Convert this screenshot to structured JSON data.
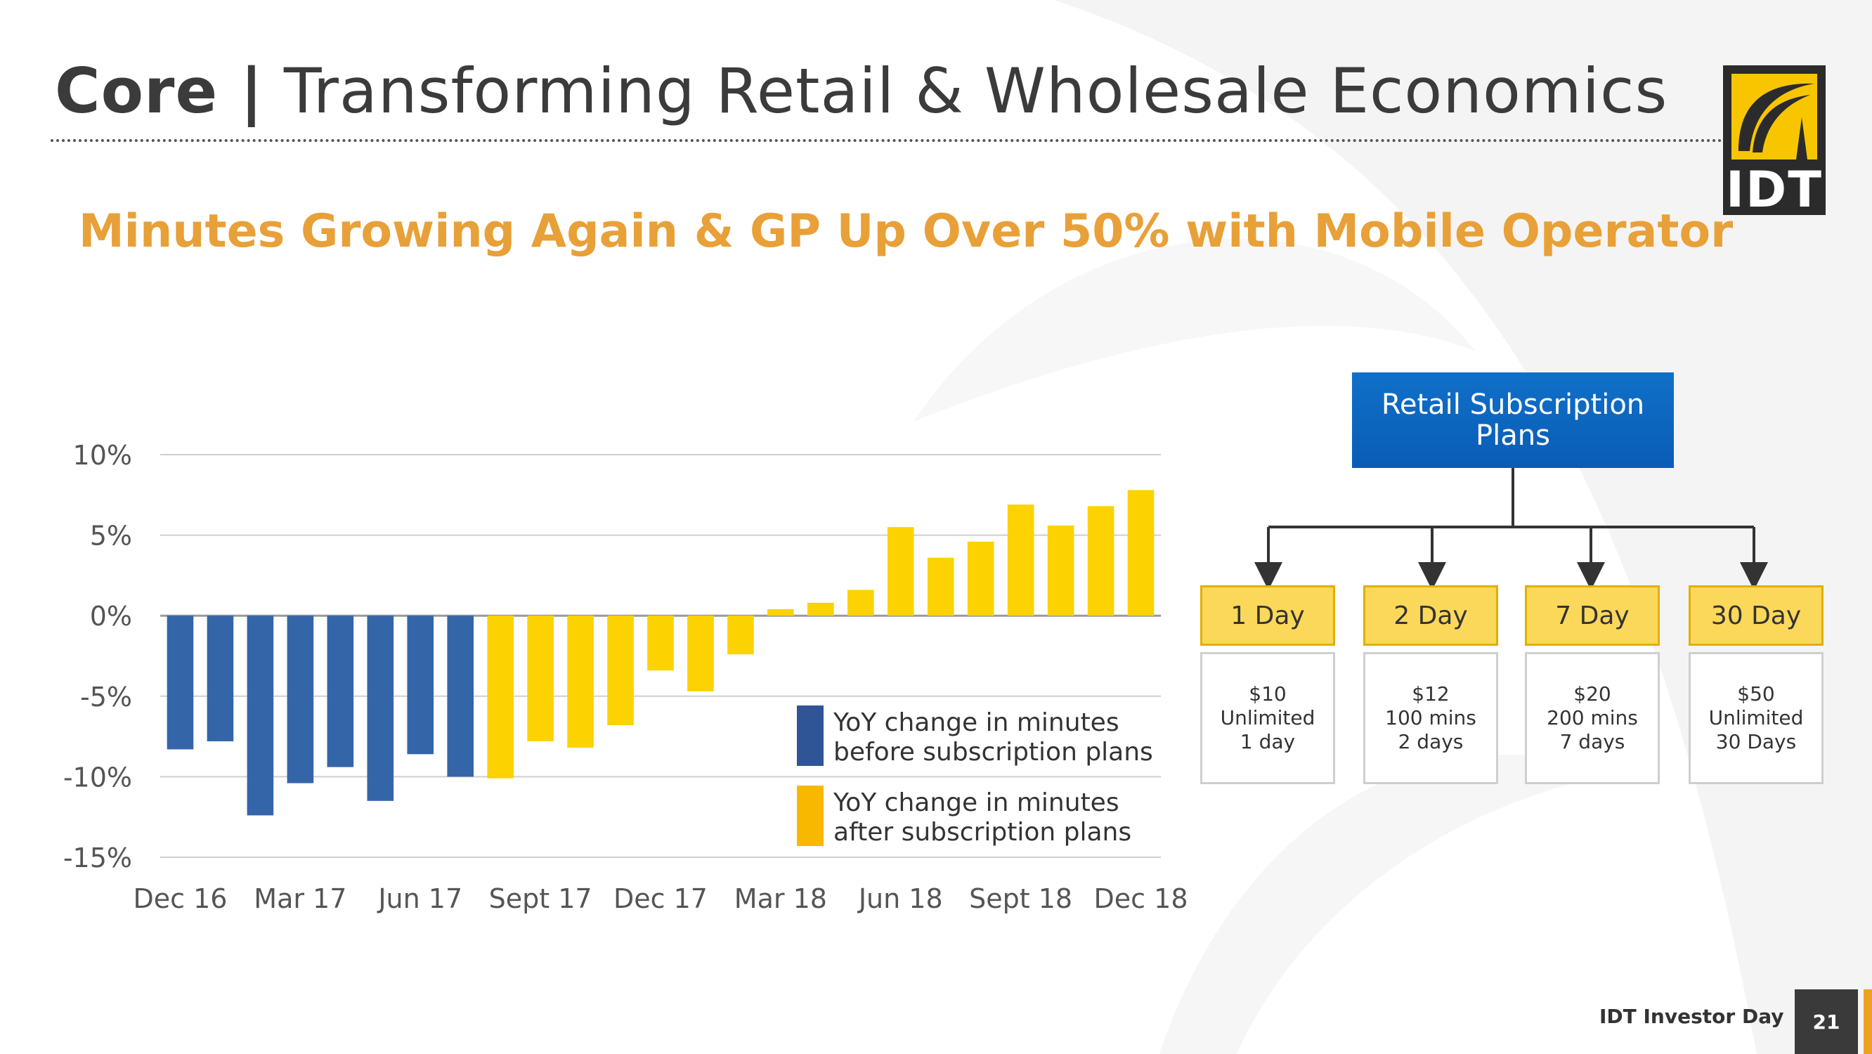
{
  "title": {
    "bold": "Core |",
    "rest": "Transforming Retail & Wholesale Economics"
  },
  "subtitle": "Minutes Growing Again & GP Up Over 50% with Mobile Operator",
  "logo_text": "IDT",
  "colors": {
    "before": "#3465a8",
    "after": "#fcd200",
    "accent": "#e8a038",
    "plan_blue": "#0a5cb5"
  },
  "chart_data": {
    "type": "bar",
    "ylabel": "",
    "xlabel": "",
    "ylim": [
      -15,
      10
    ],
    "yticks": [
      10,
      5,
      0,
      -5,
      -10,
      -15
    ],
    "ytick_labels": [
      "10%",
      "5%",
      "0%",
      "-5%",
      "-10%",
      "-15%"
    ],
    "xtick_labels": [
      "Dec 16",
      "Mar 17",
      "Jun 17",
      "Sept 17",
      "Dec 17",
      "Mar 18",
      "Jun 18",
      "Sept 18",
      "Dec 18"
    ],
    "grid": true,
    "legend_position": "bottom-right",
    "series": [
      {
        "name": "YoY change in minutes before subscription plans",
        "color": "#3465a8",
        "values": [
          -8.3,
          -7.8,
          -12.4,
          -10.4,
          -9.4,
          -11.5,
          -8.6,
          -10.0
        ]
      },
      {
        "name": "YoY change in minutes after subscription plans",
        "color": "#fcd200",
        "values": [
          -10.1,
          -7.8,
          -8.2,
          -6.8,
          -3.4,
          -4.7,
          -2.4,
          0.4,
          0.8,
          1.6,
          5.5,
          3.6,
          4.6,
          6.9,
          5.6,
          6.8,
          7.8
        ]
      }
    ],
    "legend": [
      {
        "line1": "YoY change in minutes",
        "line2": "before subscription plans",
        "color": "#2f5597"
      },
      {
        "line1": "YoY change in minutes",
        "line2": "after subscription plans",
        "color": "#f9b800"
      }
    ]
  },
  "plans": {
    "root_line1": "Retail Subscription",
    "root_line2": "Plans",
    "items": [
      {
        "name": "1 Day",
        "price": "$10",
        "line2": "Unlimited",
        "line3": "1 day"
      },
      {
        "name": "2 Day",
        "price": "$12",
        "line2": "100 mins",
        "line3": "2 days"
      },
      {
        "name": "7 Day",
        "price": "$20",
        "line2": "200 mins",
        "line3": "7 days"
      },
      {
        "name": "30 Day",
        "price": "$50",
        "line2": "Unlimited",
        "line3": "30 Days"
      }
    ]
  },
  "footer": {
    "label": "IDT Investor Day",
    "page": "21"
  }
}
